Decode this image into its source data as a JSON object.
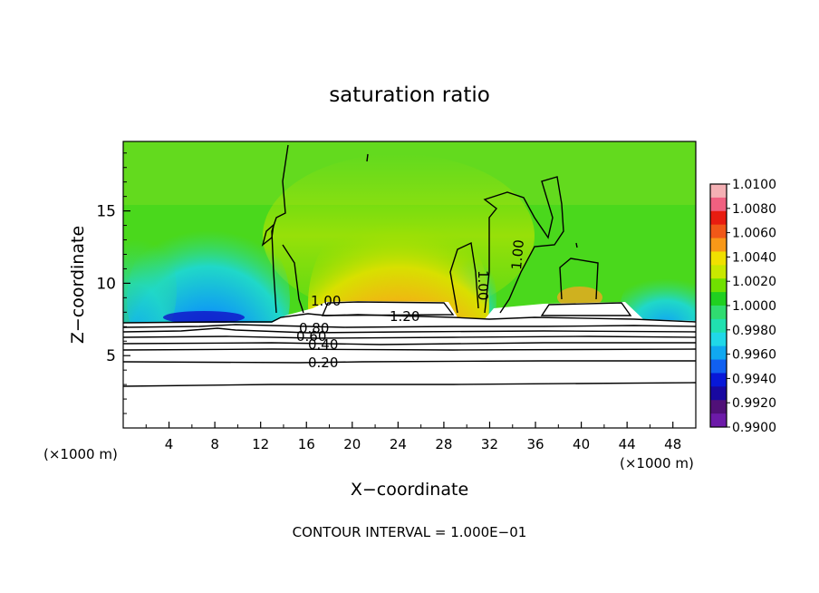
{
  "chart_data": {
    "type": "heatmap",
    "title": "saturation ratio",
    "xlabel": "X−coordinate",
    "ylabel": "Z−coordinate",
    "x_unit_left": "(×1000 m)",
    "x_unit_right": "(×1000 m)",
    "xlim": [
      0,
      50
    ],
    "ylim": [
      0,
      19.8
    ],
    "x_ticks": [
      4,
      8,
      12,
      16,
      20,
      24,
      28,
      32,
      36,
      40,
      44,
      48
    ],
    "y_ticks": [
      5,
      10,
      15
    ],
    "footer": "CONTOUR INTERVAL = 1.000E−01",
    "colorbar": {
      "labels": [
        "1.0100",
        "1.0080",
        "1.0060",
        "1.0040",
        "1.0020",
        "1.0000",
        "0.9980",
        "0.9960",
        "0.9940",
        "0.9920",
        "0.9900"
      ],
      "colors": [
        "#f4b0b4",
        "#f06080",
        "#e81c10",
        "#f05818",
        "#f89818",
        "#f0e000",
        "#c8e800",
        "#70e000",
        "#20d020",
        "#30dc70",
        "#20e0b0",
        "#20d8e8",
        "#10a8f0",
        "#1060f0",
        "#0818d8",
        "#1808a0",
        "#501078",
        "#6c1aa8"
      ]
    },
    "contour_labels": [
      {
        "text": "1.00",
        "x": 16.5,
        "y": 9.0
      },
      {
        "text": "1.20",
        "x": 24.0,
        "y": 7.9
      },
      {
        "text": "1.00",
        "x": 31.0,
        "y": 10.0
      },
      {
        "text": "1.00",
        "x": 35.5,
        "y": 12.5
      },
      {
        "text": "0.80",
        "x": 16.2,
        "y": 6.9
      },
      {
        "text": "0.60",
        "x": 15.6,
        "y": 6.4
      },
      {
        "text": "0.40",
        "x": 17.5,
        "y": 5.7
      },
      {
        "text": "0.20",
        "x": 17.5,
        "y": 4.5
      }
    ]
  }
}
